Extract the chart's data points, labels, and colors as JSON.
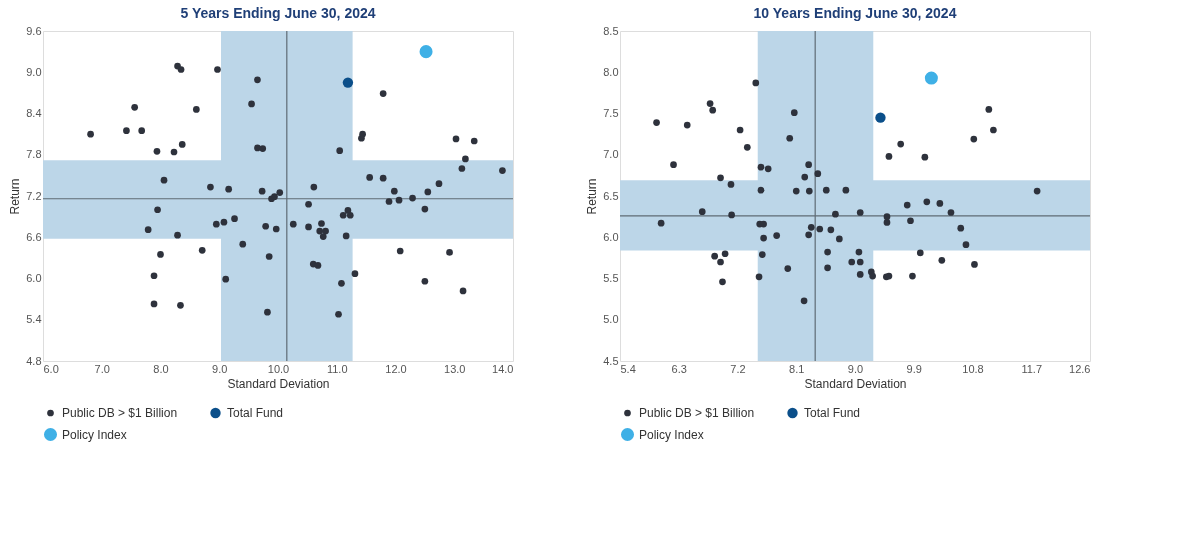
{
  "chart_data": [
    {
      "type": "scatter",
      "title": "5 Years Ending June 30, 2024",
      "xlabel": "Standard Deviation",
      "ylabel": "Return",
      "xlim": [
        6.0,
        14.0
      ],
      "ylim": [
        4.8,
        9.6
      ],
      "xticks": [
        {
          "value": 6,
          "label": "6.0"
        },
        {
          "value": 7,
          "label": "7.0"
        },
        {
          "value": 8,
          "label": "8.0"
        },
        {
          "value": 9,
          "label": "9.0"
        },
        {
          "value": 10,
          "label": "10.0"
        },
        {
          "value": 11,
          "label": "11.0"
        },
        {
          "value": 12,
          "label": "12.0"
        },
        {
          "value": 13,
          "label": "13.0"
        },
        {
          "value": 14,
          "label": "14.0"
        }
      ],
      "yticks": [
        4.8,
        5.4,
        {
          "value": 6,
          "label": "6.0"
        },
        6.6,
        7.2,
        7.8,
        8.4,
        {
          "value": 9,
          "label": "9.0"
        },
        9.6
      ],
      "grid": false,
      "legend": "bottom left",
      "marker": "circle",
      "bands": [
        {
          "axis": "x",
          "from": 9.03,
          "to": 11.27,
          "color": "#bcd6e8"
        },
        {
          "axis": "y",
          "from": 6.58,
          "to": 7.72,
          "color": "#bcd6e8"
        }
      ],
      "ref_lines": [
        {
          "axis": "x",
          "value": 10.15,
          "color": "#5f6b75"
        },
        {
          "axis": "y",
          "value": 7.16,
          "color": "#5f6b75"
        }
      ],
      "series": [
        {
          "name": "Public DB > $1 Billion",
          "color": "#2e323c",
          "x": [
            8.29,
            8.35,
            8.97,
            9.65,
            9.55,
            7.56,
            8.61,
            6.81,
            7.42,
            7.68,
            8.37,
            7.94,
            8.23,
            9.65,
            9.74,
            8.06,
            8.85,
            9.16,
            9.73,
            9.89,
            9.94,
            10.03,
            7.95,
            7.79,
            8.29,
            8.95,
            9.08,
            9.26,
            9.79,
            9.97,
            9.4,
            8.0,
            8.71,
            9.85,
            7.89,
            9.11,
            7.89,
            8.34,
            9.82,
            11.79,
            11.42,
            11.44,
            13.03,
            13.34,
            13.19,
            13.13,
            13.82,
            11.05,
            11.56,
            11.79,
            12.74,
            10.61,
            11.98,
            12.55,
            11.89,
            12.06,
            12.29,
            12.5,
            10.52,
            10.26,
            11.19,
            11.11,
            11.23,
            10.52,
            10.74,
            10.71,
            10.81,
            10.77,
            11.16,
            12.08,
            12.92,
            10.6,
            10.68,
            11.31,
            11.08,
            12.5,
            13.15,
            11.03
          ],
          "values": [
            9.09,
            9.04,
            9.04,
            8.89,
            8.54,
            8.49,
            8.46,
            8.1,
            8.15,
            8.15,
            7.95,
            7.85,
            7.84,
            7.9,
            7.89,
            7.43,
            7.33,
            7.3,
            7.27,
            7.16,
            7.19,
            7.25,
            7.0,
            6.71,
            6.63,
            6.79,
            6.82,
            6.87,
            6.76,
            6.72,
            6.5,
            6.35,
            6.41,
            6.32,
            6.04,
            5.99,
            5.63,
            5.61,
            5.51,
            8.69,
            8.04,
            8.1,
            8.03,
            8.0,
            7.74,
            7.6,
            7.57,
            7.86,
            7.47,
            7.46,
            7.38,
            7.33,
            7.27,
            7.26,
            7.12,
            7.14,
            7.17,
            7.01,
            7.08,
            6.79,
            6.99,
            6.92,
            6.92,
            6.75,
            6.8,
            6.69,
            6.69,
            6.61,
            6.62,
            6.4,
            6.38,
            6.21,
            6.19,
            6.07,
            5.93,
            5.96,
            5.82,
            5.48
          ]
        },
        {
          "name": "Total Fund",
          "color": "#0b4f8a",
          "x": [
            11.19
          ],
          "values": [
            8.85
          ]
        },
        {
          "name": "Policy Index",
          "color": "#3fb0e6",
          "x": [
            12.52
          ],
          "values": [
            9.3
          ]
        }
      ]
    },
    {
      "type": "scatter",
      "title": "10 Years Ending June 30, 2024",
      "xlabel": "Standard Deviation",
      "ylabel": "Return",
      "xlim": [
        5.4,
        12.6
      ],
      "ylim": [
        4.5,
        8.5
      ],
      "xticks": [
        5.4,
        6.3,
        7.2,
        8.1,
        {
          "value": 9,
          "label": "9.0"
        },
        9.9,
        10.8,
        11.7,
        12.6
      ],
      "yticks": [
        4.5,
        {
          "value": 5,
          "label": "5.0"
        },
        5.5,
        {
          "value": 6,
          "label": "6.0"
        },
        6.5,
        {
          "value": 7,
          "label": "7.0"
        },
        7.5,
        {
          "value": 8,
          "label": "8.0"
        },
        8.5
      ],
      "grid": false,
      "legend": "bottom left",
      "marker": "circle",
      "bands": [
        {
          "axis": "x",
          "from": 7.51,
          "to": 9.28,
          "color": "#bcd6e8"
        },
        {
          "axis": "y",
          "from": 5.84,
          "to": 6.69,
          "color": "#bcd6e8"
        }
      ],
      "ref_lines": [
        {
          "axis": "x",
          "value": 8.39,
          "color": "#5f6b75"
        },
        {
          "axis": "y",
          "value": 6.26,
          "color": "#5f6b75"
        }
      ],
      "series": [
        {
          "name": "Public DB > $1 Billion",
          "color": "#2e323c",
          "x": [
            7.48,
            6.78,
            6.82,
            5.96,
            6.43,
            8.07,
            7.24,
            8.0,
            7.35,
            6.22,
            7.56,
            7.67,
            8.29,
            8.23,
            8.43,
            6.94,
            7.1,
            7.56,
            8.1,
            8.3,
            8.56,
            8.86,
            6.66,
            7.11,
            6.03,
            7.54,
            7.6,
            8.7,
            8.33,
            8.46,
            8.29,
            8.63,
            8.76,
            7.6,
            7.8,
            6.85,
            7.01,
            6.94,
            7.58,
            8.58,
            8.58,
            8.95,
            7.97,
            6.97,
            7.53,
            8.22,
            11.05,
            11.12,
            10.82,
            9.7,
            9.52,
            10.07,
            11.79,
            9.8,
            10.1,
            10.3,
            9.08,
            9.49,
            9.49,
            9.85,
            10.47,
            10.62,
            10.7,
            9.06,
            9.08,
            10.0,
            10.33,
            10.83,
            9.08,
            9.25,
            9.27,
            9.48,
            9.52,
            9.88
          ],
          "values": [
            7.87,
            7.62,
            7.54,
            7.39,
            7.36,
            7.51,
            7.3,
            7.2,
            7.09,
            6.88,
            6.85,
            6.83,
            6.88,
            6.73,
            6.77,
            6.72,
            6.64,
            6.57,
            6.56,
            6.56,
            6.57,
            6.57,
            6.31,
            6.27,
            6.17,
            6.16,
            6.16,
            6.28,
            6.12,
            6.1,
            6.03,
            6.09,
            5.98,
            5.99,
            6.02,
            5.77,
            5.8,
            5.7,
            5.79,
            5.82,
            5.63,
            5.7,
            5.62,
            5.46,
            5.52,
            5.23,
            7.55,
            7.3,
            7.19,
            7.13,
            6.98,
            6.97,
            6.56,
            6.39,
            6.43,
            6.41,
            6.3,
            6.25,
            6.18,
            6.2,
            6.3,
            6.11,
            5.91,
            5.82,
            5.7,
            5.81,
            5.72,
            5.67,
            5.55,
            5.58,
            5.53,
            5.52,
            5.53,
            5.53
          ]
        },
        {
          "name": "Total Fund",
          "color": "#0b4f8a",
          "x": [
            9.39
          ],
          "values": [
            7.45
          ]
        },
        {
          "name": "Policy Index",
          "color": "#3fb0e6",
          "x": [
            10.17
          ],
          "values": [
            7.93
          ]
        }
      ]
    }
  ]
}
